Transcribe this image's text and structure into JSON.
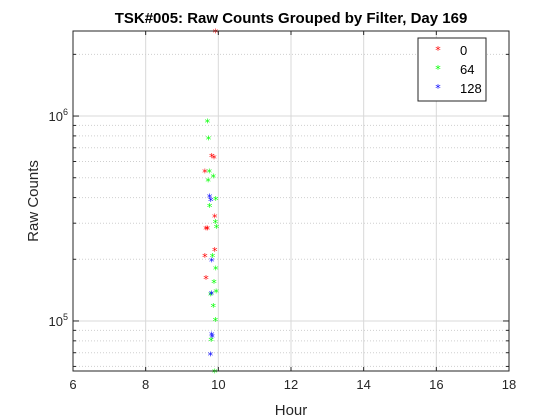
{
  "chart_data": {
    "type": "scatter",
    "title": "TSK#005: Raw Counts Grouped by Filter, Day 169",
    "xlabel": "Hour",
    "ylabel": "Raw  Counts",
    "xlim": [
      6,
      18
    ],
    "ylim": [
      57000,
      2600000
    ],
    "yscale": "log",
    "grid": true,
    "legend_position": "top-right",
    "x_ticks": [
      6,
      8,
      10,
      12,
      14,
      16,
      18
    ],
    "y_ticks": [
      {
        "value": 100000,
        "base": "10",
        "exp": "5"
      },
      {
        "value": 1000000,
        "base": "10",
        "exp": "6"
      }
    ],
    "series": [
      {
        "name": "0",
        "color": "#ff0000",
        "marker": "*",
        "x": [
          9.92,
          9.82,
          9.88,
          9.63,
          9.9,
          9.7,
          9.66,
          9.9,
          9.63,
          9.66
        ],
        "y": [
          2550000,
          630000,
          620000,
          530000,
          320000,
          280000,
          280000,
          220000,
          205000,
          160000
        ]
      },
      {
        "name": "64",
        "color": "#00ff00",
        "marker": "*",
        "x": [
          9.7,
          9.73,
          9.75,
          9.86,
          9.72,
          9.93,
          9.76,
          9.92,
          9.95,
          9.84,
          9.93,
          9.88,
          9.94,
          9.79,
          9.86,
          9.92,
          9.8,
          9.9
        ],
        "y": [
          930000,
          770000,
          530000,
          500000,
          480000,
          390000,
          360000,
          300000,
          285000,
          205000,
          178000,
          153000,
          138000,
          133000,
          117000,
          100000,
          80000,
          56000
        ]
      },
      {
        "name": "128",
        "color": "#0000ff",
        "marker": "*",
        "x": [
          9.76,
          9.79,
          9.82,
          9.81,
          9.82,
          9.83,
          9.78
        ],
        "y": [
          400000,
          385000,
          195000,
          135000,
          85000,
          83000,
          68000
        ]
      }
    ]
  }
}
